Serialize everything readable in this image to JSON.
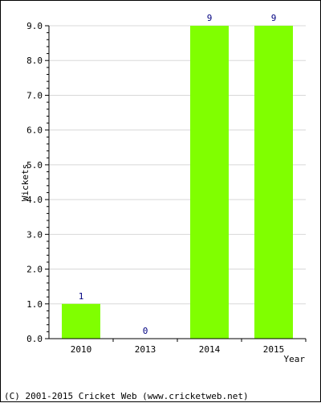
{
  "chart_data": {
    "type": "bar",
    "categories": [
      "2010",
      "2013",
      "2014",
      "2015"
    ],
    "values": [
      1,
      0,
      9,
      9
    ],
    "data_labels": [
      "1",
      "0",
      "9",
      "9"
    ],
    "xlabel": "Year",
    "ylabel": "Wickets",
    "ylim": [
      0,
      9
    ],
    "y_ticks": [
      "0.0",
      "1.0",
      "2.0",
      "3.0",
      "4.0",
      "5.0",
      "6.0",
      "7.0",
      "8.0",
      "9.0"
    ],
    "grid": true,
    "bar_color": "#80ff00",
    "label_color": "#000080"
  },
  "footer": {
    "copyright": "(C) 2001-2015 Cricket Web (www.cricketweb.net)"
  }
}
